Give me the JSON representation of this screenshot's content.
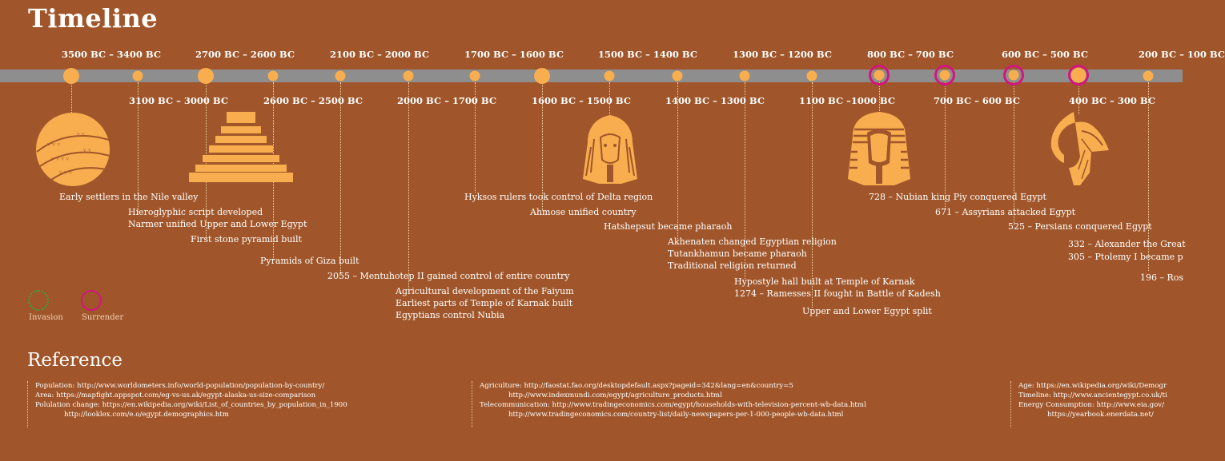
{
  "title": "Timeline",
  "timeline": {
    "dates_top": [
      "3500 BC – 3400 BC",
      "2700 BC – 2600 BC",
      "2100 BC – 2000 BC",
      "1700 BC – 1600 BC",
      "1500 BC – 1400 BC",
      "1300 BC – 1200 BC",
      "800 BC – 700 BC",
      "600 BC – 500 BC",
      "200 BC – 100 BC"
    ],
    "dates_bottom": [
      "3100 BC – 3000 BC",
      "2600 BC – 2500 BC",
      "2000 BC – 1700 BC",
      "1600 BC – 1500 BC",
      "1400 BC – 1300 BC",
      "1100 BC –1000 BC",
      "700 BC – 600 BC",
      "400 BC – 300 BC"
    ]
  },
  "events": [
    "Early settlers in the Nile valley",
    "Hieroglyphic script developed",
    "Narmer unified Upper and Lower Egypt",
    "First stone pyramid built",
    "Pyramids of Giza built",
    "2055 – Mentuhotep II gained control of entire country",
    "Agricultural development of the Faiyum",
    "Earliest parts of Temple of Karnak built",
    "Egyptians control Nubia",
    "Hyksos rulers took control of Delta region",
    "Ahmose unified country",
    "Hatshepsut became pharaoh",
    "Akhenaten changed Egyptian religion",
    "Tutankhamun became pharaoh",
    "Traditional religion returned",
    "Hypostyle hall built at Temple of Karnak",
    "1274 – Ramesses II fought in Battle of Kadesh",
    "Upper and Lower Egypt split",
    "728 – Nubian king Piy conquered Egypt",
    "671 – Assyrians attacked Egypt",
    "525 – Persians conquered Egypt",
    "332 – Alexander the Great",
    "305 – Ptolemy I became p",
    "196 – Ros"
  ],
  "legend": {
    "invasion": "Invasion",
    "surrender": "Surrender"
  },
  "colors": {
    "background": "#a0562a",
    "track": "#8e8e8e",
    "accent": "#f8ae4e",
    "surrender": "#d1177f",
    "invasion": "#3aa33a"
  },
  "reference": {
    "title": "Reference",
    "col1": [
      "Population: http://www.worldometers.info/world-population/population-by-country/",
      "Area: https://mapfight.appspot.com/eg-vs-us.ak/egypt-alaska-us-size-comparison",
      "Polulation change: https://en.wikipedia.org/wiki/List_of_countries_by_population_in_1900",
      "http://looklex.com/e.o/egypt.demographics.htm"
    ],
    "col2": [
      "Agriculture: http://faostat.fao.org/desktopdefault.aspx?pageid=342&lang=en&country=5",
      "http://www.indexmundi.com/egypt/agriculture_products.html",
      "Telecommunication: http://www.tradingeconomics.com/egypt/households-with-television-percent-wb-data.html",
      "http://www.tradingeconomics.com/country-list/daily-newspapers-per-1-000-people-wb-data.html"
    ],
    "col3": [
      "Age: https://en.wikipedia.org/wiki/Demogr",
      "Timeline: http://www.ancientegypt.co.uk/ti",
      "Energy Consumption: http://www.eia.gov/",
      "https://yearbook.enerdata.net/"
    ]
  }
}
